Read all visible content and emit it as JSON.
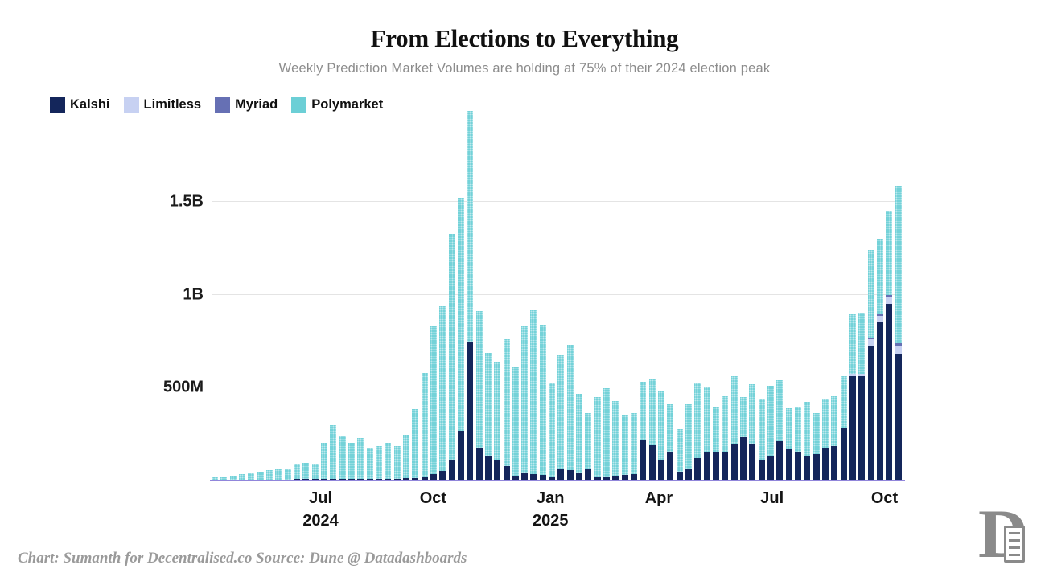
{
  "page": {
    "title": "From Elections to Everything",
    "subtitle": "Weekly Prediction Market Volumes are holding at 75% of their 2024 election peak",
    "footer_credit": "Chart: Sumanth for Decentralised.co Source: Dune @ Datadashboards",
    "logo_letter": "D"
  },
  "colors": {
    "kalshi": "#14265B",
    "limitless": "#C7D1F2",
    "myriad": "#6670B4",
    "polymarket": "#6CCFD6",
    "axis_line": "#9186DB",
    "gridline": "#E4E4E4",
    "subtitle_text": "#8C8C8C",
    "footer_text": "#9A9A9A"
  },
  "chart_data": {
    "type": "bar",
    "stacked": true,
    "title": "From Elections to Everything",
    "subtitle": "Weekly Prediction Market Volumes are holding at 75% of their 2024 election peak",
    "unit": "USD millions (weekly volume)",
    "ylim": [
      0,
      2090
    ],
    "grid": "horizontal",
    "legend_position": "top-left",
    "y_ticks": [
      {
        "label": "500M",
        "value": 500
      },
      {
        "label": "1B",
        "value": 1000
      },
      {
        "label": "1.5B",
        "value": 1500
      }
    ],
    "x_ticks": [
      {
        "label": "Jul",
        "sublabel": "2024",
        "pos_pct": 15.8
      },
      {
        "label": "Oct",
        "sublabel": "",
        "pos_pct": 32.1
      },
      {
        "label": "Jan",
        "sublabel": "2025",
        "pos_pct": 49.1
      },
      {
        "label": "Apr",
        "sublabel": "",
        "pos_pct": 64.8
      },
      {
        "label": "Jul",
        "sublabel": "",
        "pos_pct": 81.2
      },
      {
        "label": "Oct",
        "sublabel": "",
        "pos_pct": 97.5
      }
    ],
    "series": [
      {
        "name": "Kalshi",
        "color": "#14265B",
        "values": [
          2,
          3,
          5,
          4,
          6,
          5,
          5,
          6,
          6,
          8,
          7,
          8,
          8,
          10,
          9,
          8,
          9,
          8,
          9,
          10,
          9,
          12,
          15,
          20,
          35,
          50,
          110,
          270,
          750,
          175,
          135,
          108,
          78,
          25,
          43,
          35,
          30,
          20,
          65,
          56,
          40,
          65,
          20,
          20,
          25,
          30,
          35,
          215,
          190,
          114,
          153,
          49,
          60,
          121,
          152,
          152,
          156,
          200,
          232,
          196,
          110,
          133,
          212,
          168,
          150,
          136,
          143,
          176,
          186,
          287,
          562,
          562,
          725,
          854,
          951,
          684
        ]
      },
      {
        "name": "Limitless",
        "color": "#C7D1F2",
        "values": [
          0,
          0,
          0,
          0,
          0,
          0,
          0,
          0,
          0,
          0,
          0,
          0,
          0,
          0,
          0,
          0,
          0,
          0,
          0,
          0,
          0,
          0,
          0,
          0,
          0,
          0,
          0,
          0,
          0,
          0,
          0,
          0,
          0,
          0,
          0,
          0,
          0,
          0,
          0,
          0,
          0,
          0,
          0,
          0,
          0,
          0,
          0,
          0,
          0,
          0,
          0,
          0,
          0,
          0,
          0,
          0,
          0,
          0,
          0,
          0,
          0,
          0,
          0,
          0,
          0,
          0,
          0,
          0,
          0,
          0,
          10,
          10,
          35,
          35,
          40,
          45
        ]
      },
      {
        "name": "Myriad",
        "color": "#6670B4",
        "values": [
          0,
          0,
          0,
          0,
          0,
          0,
          0,
          0,
          0,
          0,
          0,
          0,
          0,
          0,
          0,
          0,
          0,
          0,
          0,
          0,
          0,
          0,
          0,
          0,
          0,
          0,
          0,
          0,
          0,
          0,
          0,
          0,
          0,
          0,
          0,
          0,
          0,
          0,
          0,
          0,
          0,
          0,
          0,
          0,
          0,
          0,
          0,
          0,
          0,
          0,
          0,
          0,
          0,
          0,
          0,
          0,
          0,
          0,
          0,
          0,
          0,
          0,
          0,
          0,
          0,
          0,
          0,
          0,
          0,
          0,
          0,
          0,
          8,
          8,
          10,
          12
        ]
      },
      {
        "name": "Polymarket",
        "color": "#6CCFD6",
        "values": [
          14,
          15,
          22,
          31,
          36,
          44,
          51,
          53,
          60,
          82,
          88,
          82,
          197,
          287,
          235,
          197,
          220,
          168,
          177,
          195,
          177,
          236,
          369,
          560,
          795,
          890,
          1220,
          1250,
          1240,
          738,
          553,
          529,
          684,
          585,
          788,
          883,
          806,
          508,
          611,
          674,
          428,
          299,
          430,
          478,
          403,
          322,
          329,
          318,
          356,
          367,
          260,
          228,
          350,
          407,
          355,
          243,
          299,
          362,
          218,
          322,
          332,
          378,
          328,
          220,
          248,
          288,
          221,
          266,
          268,
          275,
          322,
          332,
          472,
          403,
          455,
          841
        ]
      }
    ]
  }
}
